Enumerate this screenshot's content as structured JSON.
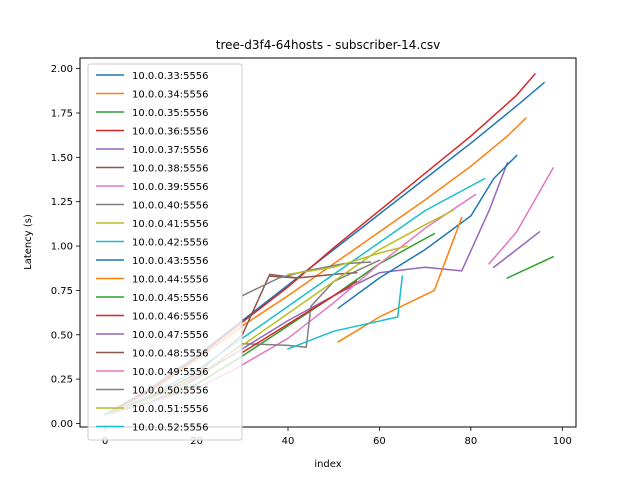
{
  "chart_data": {
    "type": "line",
    "title": "tree-d3f4-64hosts - subscriber-14.csv",
    "xlabel": "index",
    "ylabel": "Latency (s)",
    "xlim": [
      -5.5,
      103
    ],
    "ylim": [
      -0.02,
      2.06
    ],
    "xticks": [
      0,
      20,
      40,
      60,
      80,
      100
    ],
    "yticks": [
      0.0,
      0.25,
      0.5,
      0.75,
      1.0,
      1.25,
      1.5,
      1.75,
      2.0
    ],
    "xtick_labels": [
      "0",
      "20",
      "40",
      "60",
      "80",
      "100"
    ],
    "ytick_labels": [
      "0.00",
      "0.25",
      "0.50",
      "0.75",
      "1.00",
      "1.25",
      "1.50",
      "1.75",
      "2.00"
    ],
    "grid": false,
    "legend_position": "upper-left",
    "series": [
      {
        "name": "10.0.0.33:5556",
        "color": "#1f77b4",
        "x": [
          0,
          10,
          20,
          30,
          40,
          50,
          60,
          70,
          80,
          90,
          96
        ],
        "y": [
          0.05,
          0.2,
          0.38,
          0.58,
          0.78,
          0.98,
          1.18,
          1.38,
          1.58,
          1.79,
          1.92
        ]
      },
      {
        "name": "10.0.0.34:5556",
        "color": "#ff7f0e",
        "x": [
          0,
          10,
          20,
          30,
          40,
          50,
          60,
          70,
          80,
          88,
          92
        ],
        "y": [
          0.05,
          0.18,
          0.36,
          0.55,
          0.72,
          0.9,
          1.08,
          1.26,
          1.45,
          1.62,
          1.72
        ]
      },
      {
        "name": "10.0.0.35:5556",
        "color": "#2ca02c",
        "x": [
          0,
          10,
          20,
          30,
          40,
          50,
          60,
          72
        ],
        "y": [
          0.05,
          0.12,
          0.22,
          0.38,
          0.55,
          0.72,
          0.9,
          1.07
        ]
      },
      {
        "name": "10.0.0.36:5556",
        "color": "#d62728",
        "x": [
          0,
          10,
          20,
          30,
          40,
          50,
          60,
          70,
          80,
          90,
          94
        ],
        "y": [
          0.05,
          0.19,
          0.37,
          0.57,
          0.77,
          0.99,
          1.2,
          1.41,
          1.62,
          1.85,
          1.97
        ]
      },
      {
        "name": "10.0.0.37:5556",
        "color": "#9467bd",
        "x": [
          0,
          10,
          20,
          30,
          40,
          50,
          60,
          70,
          78,
          84,
          88
        ],
        "y": [
          0.05,
          0.14,
          0.26,
          0.42,
          0.58,
          0.72,
          0.85,
          0.88,
          0.86,
          1.2,
          1.47
        ]
      },
      {
        "name": "10.0.0.38:5556",
        "color": "#8c564b",
        "x": [
          0,
          10,
          20,
          30,
          36,
          42,
          50,
          55
        ],
        "y": [
          0.05,
          0.15,
          0.28,
          0.5,
          0.84,
          0.82,
          0.84,
          0.85
        ]
      },
      {
        "name": "10.0.0.39:5556",
        "color": "#e377c2",
        "x": [
          0,
          10,
          20,
          28,
          40,
          50,
          60,
          70,
          81
        ],
        "y": [
          0.05,
          0.12,
          0.2,
          0.3,
          0.48,
          0.68,
          0.9,
          1.1,
          1.29
        ]
      },
      {
        "name": "10.0.0.40:5556",
        "color": "#7f7f7f",
        "x": [
          0,
          10,
          20,
          30,
          40,
          44,
          45,
          50,
          60
        ],
        "y": [
          0.05,
          0.12,
          0.25,
          0.45,
          0.44,
          0.43,
          0.66,
          0.8,
          0.92
        ]
      },
      {
        "name": "10.0.0.41:5556",
        "color": "#bcbd22",
        "x": [
          0,
          10,
          20,
          30,
          40,
          50,
          60,
          70,
          76
        ],
        "y": [
          0.05,
          0.14,
          0.27,
          0.44,
          0.62,
          0.8,
          0.98,
          1.12,
          1.2
        ]
      },
      {
        "name": "10.0.0.42:5556",
        "color": "#17becf",
        "x": [
          0,
          10,
          20,
          30,
          40,
          50,
          60,
          70,
          83
        ],
        "y": [
          0.05,
          0.16,
          0.3,
          0.48,
          0.66,
          0.84,
          1.02,
          1.2,
          1.38
        ]
      },
      {
        "name": "10.0.0.43:5556",
        "color": "#1f77b4",
        "x": [
          51,
          60,
          70,
          80,
          85,
          90
        ],
        "y": [
          0.65,
          0.82,
          0.98,
          1.17,
          1.38,
          1.51
        ]
      },
      {
        "name": "10.0.0.44:5556",
        "color": "#ff7f0e",
        "x": [
          51,
          60,
          72,
          78
        ],
        "y": [
          0.46,
          0.6,
          0.75,
          1.16
        ]
      },
      {
        "name": "10.0.0.45:5556",
        "color": "#2ca02c",
        "x": [
          88,
          98
        ],
        "y": [
          0.82,
          0.94
        ]
      },
      {
        "name": "10.0.0.46:5556",
        "color": "#d62728",
        "x": [
          30,
          40,
          50,
          55
        ],
        "y": [
          0.4,
          0.56,
          0.72,
          0.8
        ]
      },
      {
        "name": "10.0.0.47:5556",
        "color": "#9467bd",
        "x": [
          85,
          90,
          95
        ],
        "y": [
          0.88,
          0.98,
          1.08
        ]
      },
      {
        "name": "10.0.0.48:5556",
        "color": "#8c564b",
        "x": [
          36,
          42
        ],
        "y": [
          0.83,
          0.82
        ]
      },
      {
        "name": "10.0.0.49:5556",
        "color": "#e377c2",
        "x": [
          84,
          90,
          98
        ],
        "y": [
          0.9,
          1.08,
          1.44
        ]
      },
      {
        "name": "10.0.0.50:5556",
        "color": "#7f7f7f",
        "x": [
          30,
          38,
          44,
          52,
          58
        ],
        "y": [
          0.72,
          0.82,
          0.86,
          0.9,
          0.91
        ]
      },
      {
        "name": "10.0.0.51:5556",
        "color": "#bcbd22",
        "x": [
          40,
          50,
          60,
          66
        ],
        "y": [
          0.84,
          0.88,
          0.96,
          1.0
        ]
      },
      {
        "name": "10.0.0.52:5556",
        "color": "#17becf",
        "x": [
          40,
          50,
          64,
          65
        ],
        "y": [
          0.42,
          0.52,
          0.6,
          0.83
        ]
      }
    ]
  }
}
